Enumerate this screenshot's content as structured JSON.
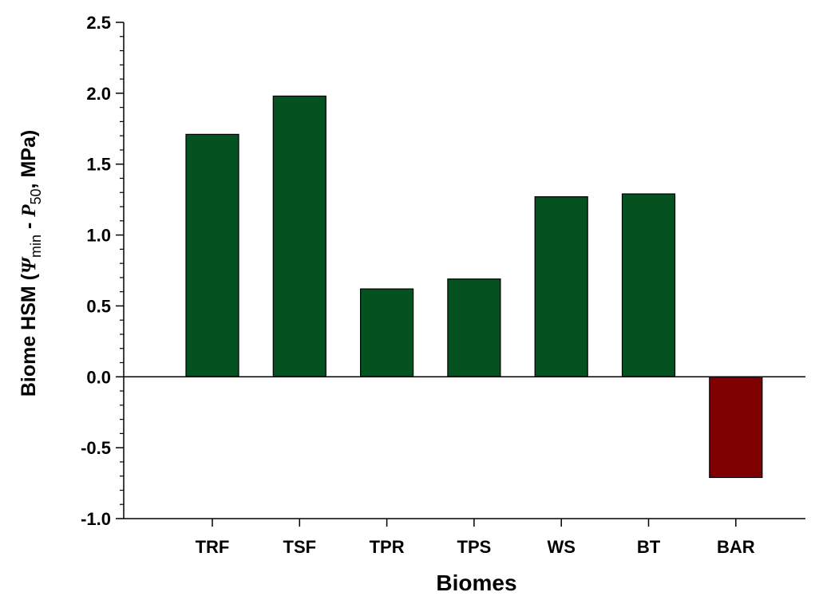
{
  "chart_data": {
    "type": "bar",
    "categories": [
      "TRF",
      "TSF",
      "TPR",
      "TPS",
      "WS",
      "BT",
      "BAR"
    ],
    "values": [
      1.71,
      1.98,
      0.62,
      0.69,
      1.27,
      1.29,
      -0.71
    ],
    "xlabel": "Biomes",
    "ylabel": {
      "prefix": "Biome HSM (",
      "psi": "Ψ",
      "psi_sub": "min",
      "minus": " - ",
      "p": "P",
      "p_sub": "50",
      "suffix": ", MPa)"
    },
    "ylim": [
      -1.0,
      2.5
    ],
    "yticks": [
      "-1.0",
      "-0.5",
      "0.0",
      "0.5",
      "1.0",
      "1.5",
      "2.0",
      "2.5"
    ],
    "ytick_values": [
      -1.0,
      -0.5,
      0.0,
      0.5,
      1.0,
      1.5,
      2.0,
      2.5
    ],
    "grid": false,
    "colors": {
      "positive": "#03521F",
      "negative": "#7F0000"
    }
  }
}
